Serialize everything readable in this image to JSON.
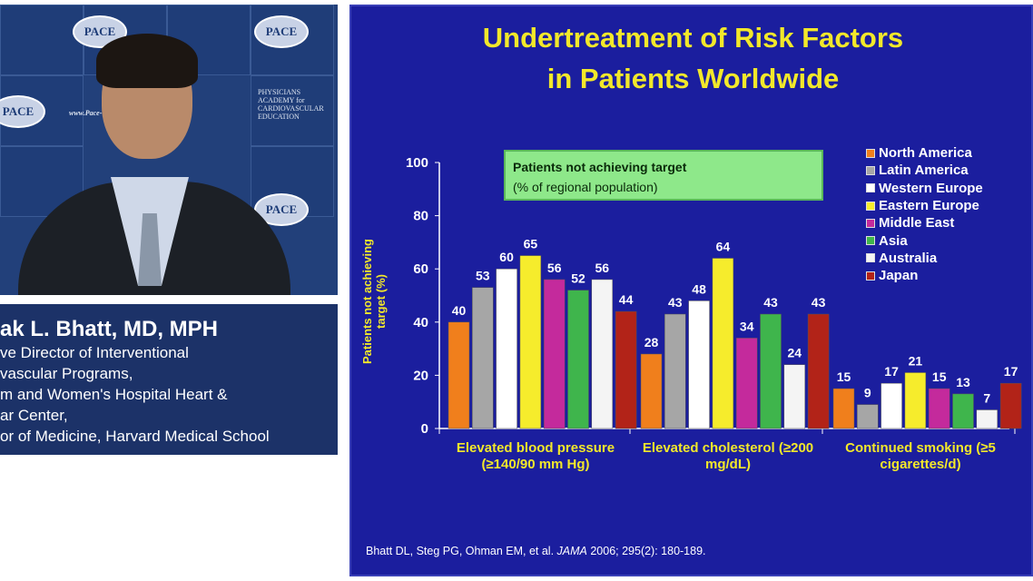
{
  "video": {
    "logo_text": "PACE",
    "backdrop_text": [
      "PHYSICIANS ACADEMY for CARDIOVASCULAR EDUCATION",
      "www.Pace-CME.org"
    ]
  },
  "speaker": {
    "name": "ak L. Bhatt, MD, MPH",
    "roles": [
      "ve Director of Interventional",
      "vascular Programs,",
      "m and Women's Hospital Heart &",
      "ar Center,",
      "or of Medicine, Harvard Medical School"
    ]
  },
  "slide": {
    "title_line1": "Undertreatment of Risk Factors",
    "title_line2": "in Patients Worldwide",
    "note_title": "Patients not achieving target",
    "note_sub": "(% of regional population)",
    "citation_pre": "Bhatt DL, Steg PG, Ohman EM, et al. ",
    "citation_journal": "JAMA",
    "citation_post": " 2006; 295(2): 180-189."
  },
  "chart_data": {
    "type": "bar",
    "ylabel": "Patients not achieving target (%)",
    "ylim": [
      0,
      100
    ],
    "yticks": [
      0,
      20,
      40,
      60,
      80,
      100
    ],
    "legend_position": "right",
    "categories": [
      "Elevated blood pressure (≥140/90 mm Hg)",
      "Elevated cholesterol (≥200 mg/dL)",
      "Continued smoking (≥5 cigarettes/d)"
    ],
    "series": [
      {
        "name": "North America",
        "color": "#f07f1c",
        "values": [
          40,
          28,
          15
        ]
      },
      {
        "name": "Latin America",
        "color": "#a6a6a6",
        "values": [
          53,
          43,
          9
        ]
      },
      {
        "name": "Western Europe",
        "color": "#ffffff",
        "values": [
          60,
          48,
          17
        ]
      },
      {
        "name": "Eastern Europe",
        "color": "#f6ec2c",
        "values": [
          65,
          64,
          21
        ]
      },
      {
        "name": "Middle East",
        "color": "#c42a9c",
        "values": [
          56,
          34,
          15
        ]
      },
      {
        "name": "Asia",
        "color": "#3fb54c",
        "values": [
          52,
          43,
          13
        ]
      },
      {
        "name": "Australia",
        "color": "#f4f4f4",
        "values": [
          56,
          24,
          7
        ]
      },
      {
        "name": "Japan",
        "color": "#b22318",
        "values": [
          44,
          43,
          17
        ]
      }
    ]
  }
}
